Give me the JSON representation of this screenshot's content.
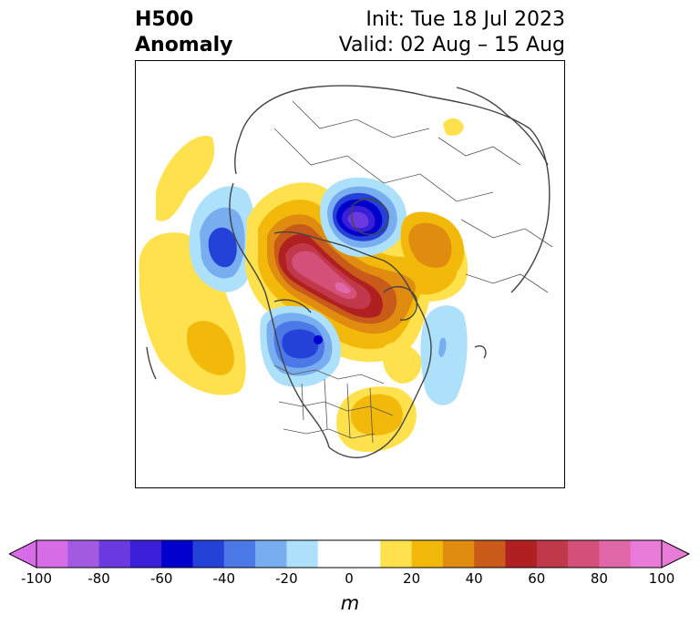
{
  "title": {
    "left_line1": "H500",
    "left_line2": "Anomaly",
    "right_line1": "Init: Tue 18 Jul 2023",
    "right_line2": "Valid: 02 Aug – 15 Aug"
  },
  "colorbar": {
    "unit": "m",
    "ticks": [
      "-100",
      "-80",
      "-60",
      "-40",
      "-20",
      "0",
      "20",
      "40",
      "60",
      "80",
      "100"
    ],
    "colors": [
      "#d66de6",
      "#a15ae0",
      "#6a3ae0",
      "#3a1fd8",
      "#0000cc",
      "#2442d8",
      "#4d78e8",
      "#78aef0",
      "#ade0fa",
      "#ffffff",
      "#ffffff",
      "#ffe14d",
      "#f2b80a",
      "#e08c10",
      "#c85a1a",
      "#b02020",
      "#c0384a",
      "#d45078",
      "#e068a8",
      "#e87ad8"
    ]
  },
  "map": {
    "projection": "north-polar-stereographic",
    "features": [
      "H500 anomaly contours",
      "coastlines",
      "country borders",
      "US state borders"
    ]
  }
}
